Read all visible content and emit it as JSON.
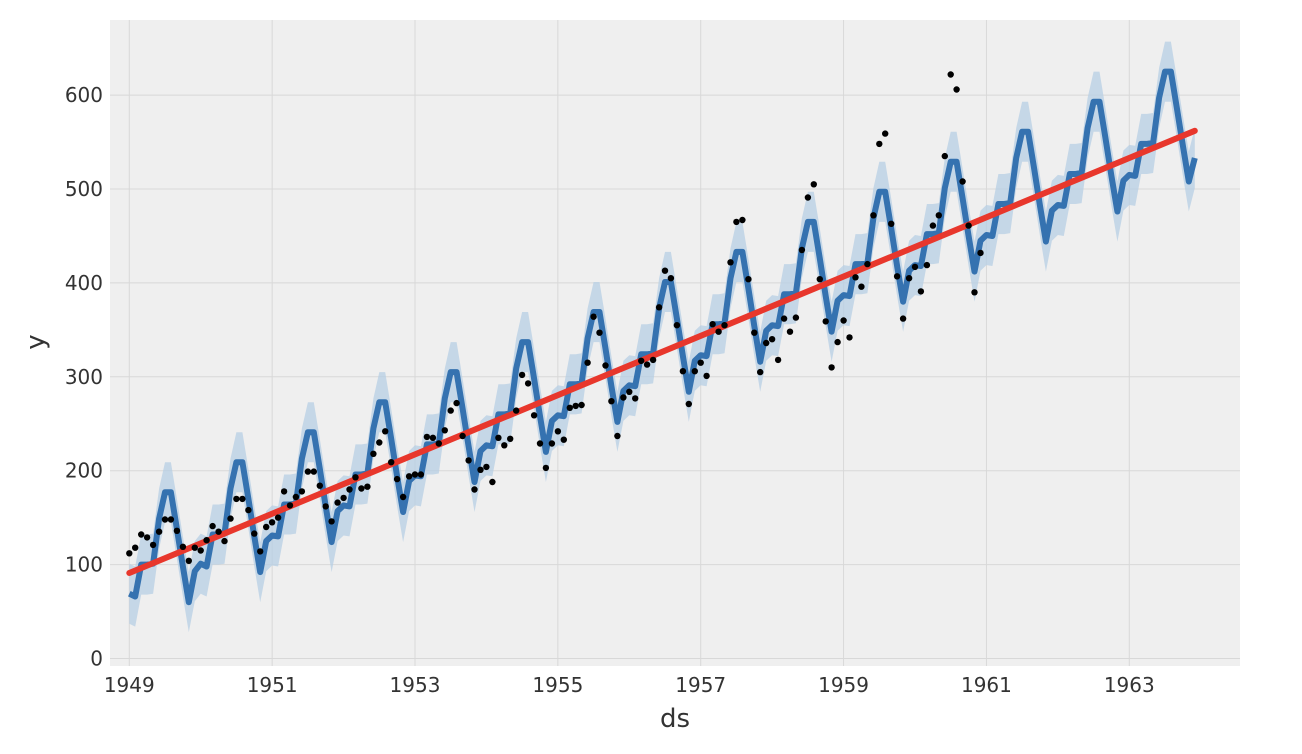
{
  "chart_data": {
    "type": "line",
    "title": "",
    "xlabel": "ds",
    "ylabel": "y",
    "xlim": [
      1948.73,
      1964.55
    ],
    "ylim": [
      -8,
      680
    ],
    "x_ticks": [
      1949,
      1951,
      1953,
      1955,
      1957,
      1959,
      1961,
      1963
    ],
    "x_tick_labels": [
      "1949",
      "1951",
      "1953",
      "1955",
      "1957",
      "1959",
      "1961",
      "1963"
    ],
    "y_ticks": [
      0,
      100,
      200,
      300,
      400,
      500,
      600
    ],
    "y_tick_labels": [
      "0",
      "100",
      "200",
      "300",
      "400",
      "500",
      "600"
    ],
    "grid": true,
    "legend": "none",
    "colors": {
      "background": "#efefef",
      "grid": "#d8d8d8",
      "observed": "#000000",
      "forecast": "#3572b0",
      "interval": "#b7cfe4",
      "trend": "#e8372c"
    },
    "series": [
      {
        "type": "scatter",
        "x": [
          1949.0,
          1949.083,
          1949.167,
          1949.25,
          1949.333,
          1949.417,
          1949.5,
          1949.583,
          1949.667,
          1949.75,
          1949.833,
          1949.917,
          1950.0,
          1950.083,
          1950.167,
          1950.25,
          1950.333,
          1950.417,
          1950.5,
          1950.583,
          1950.667,
          1950.75,
          1950.833,
          1950.917,
          1951.0,
          1951.083,
          1951.167,
          1951.25,
          1951.333,
          1951.417,
          1951.5,
          1951.583,
          1951.667,
          1951.75,
          1951.833,
          1951.917,
          1952.0,
          1952.083,
          1952.167,
          1952.25,
          1952.333,
          1952.417,
          1952.5,
          1952.583,
          1952.667,
          1952.75,
          1952.833,
          1952.917,
          1953.0,
          1953.083,
          1953.167,
          1953.25,
          1953.333,
          1953.417,
          1953.5,
          1953.583,
          1953.667,
          1953.75,
          1953.833,
          1953.917,
          1954.0,
          1954.083,
          1954.167,
          1954.25,
          1954.333,
          1954.417,
          1954.5,
          1954.583,
          1954.667,
          1954.75,
          1954.833,
          1954.917,
          1955.0,
          1955.083,
          1955.167,
          1955.25,
          1955.333,
          1955.417,
          1955.5,
          1955.583,
          1955.667,
          1955.75,
          1955.833,
          1955.917,
          1956.0,
          1956.083,
          1956.167,
          1956.25,
          1956.333,
          1956.417,
          1956.5,
          1956.583,
          1956.667,
          1956.75,
          1956.833,
          1956.917,
          1957.0,
          1957.083,
          1957.167,
          1957.25,
          1957.333,
          1957.417,
          1957.5,
          1957.583,
          1957.667,
          1957.75,
          1957.833,
          1957.917,
          1958.0,
          1958.083,
          1958.167,
          1958.25,
          1958.333,
          1958.417,
          1958.5,
          1958.583,
          1958.667,
          1958.75,
          1958.833,
          1958.917,
          1959.0,
          1959.083,
          1959.167,
          1959.25,
          1959.333,
          1959.417,
          1959.5,
          1959.583,
          1959.667,
          1959.75,
          1959.833,
          1959.917,
          1960.0,
          1960.083,
          1960.167,
          1960.25,
          1960.333,
          1960.417,
          1960.5,
          1960.583,
          1960.667,
          1960.75,
          1960.833,
          1960.917
        ],
        "y": [
          112,
          118,
          132,
          129,
          121,
          135,
          148,
          148,
          136,
          119,
          104,
          118,
          115,
          126,
          141,
          135,
          125,
          149,
          170,
          170,
          158,
          133,
          114,
          140,
          145,
          150,
          178,
          163,
          172,
          178,
          199,
          199,
          184,
          162,
          146,
          166,
          171,
          180,
          193,
          181,
          183,
          218,
          230,
          242,
          209,
          191,
          172,
          194,
          196,
          196,
          236,
          235,
          229,
          243,
          264,
          272,
          237,
          211,
          180,
          201,
          204,
          188,
          235,
          227,
          234,
          264,
          302,
          293,
          259,
          229,
          203,
          229,
          242,
          233,
          267,
          269,
          270,
          315,
          364,
          347,
          312,
          274,
          237,
          278,
          284,
          277,
          317,
          313,
          318,
          374,
          413,
          405,
          355,
          306,
          271,
          306,
          315,
          301,
          356,
          348,
          355,
          422,
          465,
          467,
          404,
          347,
          305,
          336,
          340,
          318,
          362,
          348,
          363,
          435,
          491,
          505,
          404,
          359,
          310,
          337,
          360,
          342,
          406,
          396,
          420,
          472,
          548,
          559,
          463,
          407,
          362,
          405,
          417,
          391,
          419,
          461,
          472,
          535,
          622,
          606,
          508,
          461,
          390,
          432
        ]
      },
      {
        "type": "line",
        "x": [
          1949.0,
          1949.083,
          1949.167,
          1949.25,
          1949.333,
          1949.417,
          1949.5,
          1949.583,
          1949.667,
          1949.75,
          1949.833,
          1949.917,
          1950.0,
          1950.083,
          1950.167,
          1950.25,
          1950.333,
          1950.417,
          1950.5,
          1950.583,
          1950.667,
          1950.75,
          1950.833,
          1950.917,
          1951.0,
          1951.083,
          1951.167,
          1951.25,
          1951.333,
          1951.417,
          1951.5,
          1951.583,
          1951.667,
          1951.75,
          1951.833,
          1951.917,
          1952.0,
          1952.083,
          1952.167,
          1952.25,
          1952.333,
          1952.417,
          1952.5,
          1952.583,
          1952.667,
          1952.75,
          1952.833,
          1952.917,
          1953.0,
          1953.083,
          1953.167,
          1953.25,
          1953.333,
          1953.417,
          1953.5,
          1953.583,
          1953.667,
          1953.75,
          1953.833,
          1953.917,
          1954.0,
          1954.083,
          1954.167,
          1954.25,
          1954.333,
          1954.417,
          1954.5,
          1954.583,
          1954.667,
          1954.75,
          1954.833,
          1954.917,
          1955.0,
          1955.083,
          1955.167,
          1955.25,
          1955.333,
          1955.417,
          1955.5,
          1955.583,
          1955.667,
          1955.75,
          1955.833,
          1955.917,
          1956.0,
          1956.083,
          1956.167,
          1956.25,
          1956.333,
          1956.417,
          1956.5,
          1956.583,
          1956.667,
          1956.75,
          1956.833,
          1956.917,
          1957.0,
          1957.083,
          1957.167,
          1957.25,
          1957.333,
          1957.417,
          1957.5,
          1957.583,
          1957.667,
          1957.75,
          1957.833,
          1957.917,
          1958.0,
          1958.083,
          1958.167,
          1958.25,
          1958.333,
          1958.417,
          1958.5,
          1958.583,
          1958.667,
          1958.75,
          1958.833,
          1958.917,
          1959.0,
          1959.083,
          1959.167,
          1959.25,
          1959.333,
          1959.417,
          1959.5,
          1959.583,
          1959.667,
          1959.75,
          1959.833,
          1959.917,
          1960.0,
          1960.083,
          1960.167,
          1960.25,
          1960.333,
          1960.417,
          1960.5,
          1960.583,
          1960.667,
          1960.75,
          1960.833,
          1960.917,
          1961.0,
          1961.083,
          1961.167,
          1961.25,
          1961.333,
          1961.417,
          1961.5,
          1961.583,
          1961.667,
          1961.75,
          1961.833,
          1961.917,
          1962.0,
          1962.083,
          1962.167,
          1962.25,
          1962.333,
          1962.417,
          1962.5,
          1962.583,
          1962.667,
          1962.75,
          1962.833,
          1962.917,
          1963.0,
          1963.083,
          1963.167,
          1963.25,
          1963.333,
          1963.417,
          1963.5,
          1963.583,
          1963.667,
          1963.75,
          1963.833,
          1963.917
        ],
        "y": [
          69,
          66,
          100,
          100,
          101,
          149,
          177,
          177,
          138,
          98,
          60,
          93,
          101,
          98,
          132,
          132,
          133,
          181,
          209,
          209,
          170,
          130,
          92,
          125,
          131,
          130,
          164,
          164,
          165,
          213,
          241,
          241,
          202,
          162,
          124,
          157,
          163,
          162,
          196,
          196,
          197,
          245,
          273,
          273,
          234,
          194,
          156,
          189,
          195,
          194,
          228,
          228,
          229,
          277,
          305,
          305,
          266,
          226,
          188,
          221,
          227,
          226,
          260,
          260,
          261,
          309,
          337,
          337,
          298,
          258,
          220,
          253,
          259,
          258,
          292,
          292,
          293,
          341,
          369,
          369,
          330,
          290,
          252,
          285,
          291,
          290,
          324,
          324,
          325,
          373,
          401,
          401,
          362,
          322,
          284,
          317,
          323,
          322,
          356,
          356,
          357,
          405,
          433,
          433,
          394,
          354,
          316,
          349,
          355,
          354,
          388,
          388,
          389,
          437,
          465,
          465,
          426,
          386,
          348,
          381,
          387,
          386,
          420,
          420,
          421,
          469,
          497,
          497,
          458,
          418,
          380,
          413,
          419,
          418,
          452,
          452,
          453,
          501,
          529,
          529,
          490,
          450,
          412,
          445,
          451,
          450,
          484,
          484,
          485,
          533,
          561,
          561,
          522,
          482,
          444,
          477,
          483,
          482,
          516,
          516,
          517,
          565,
          593,
          593,
          554,
          514,
          476,
          509,
          515,
          514,
          548,
          548,
          549,
          597,
          625,
          625,
          586,
          546,
          508,
          533
        ]
      },
      {
        "type": "line",
        "x": [
          1949.0,
          1963.917
        ],
        "y": [
          91,
          562
        ]
      }
    ]
  }
}
